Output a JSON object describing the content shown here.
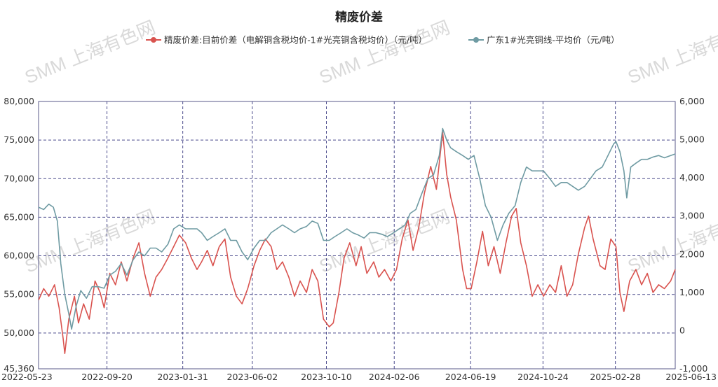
{
  "chart_data": {
    "type": "line",
    "title": "精废价差",
    "watermark": "SMM 上海有色网",
    "grid": true,
    "legend_position": "top",
    "x": [
      "2022-05-23",
      "2022-09-20",
      "2023-01-31",
      "2023-06-02",
      "2023-10-10",
      "2024-02-06",
      "2024-06-19",
      "2024-10-24",
      "2025-02-28",
      "2025-06-13"
    ],
    "xlim": [
      "2022-05-23",
      "2025-06-13"
    ],
    "y_left": {
      "ticks": [
        "80,000",
        "75,000",
        "70,000",
        "65,000",
        "60,000",
        "55,000",
        "50,000",
        "45,360"
      ],
      "range": [
        45360,
        80000
      ]
    },
    "y_right": {
      "ticks": [
        "6,000",
        "5,000",
        "4,000",
        "3,000",
        "2,000",
        "1,000",
        "0",
        "-1,000"
      ],
      "range": [
        -1000,
        6000
      ]
    },
    "series": [
      {
        "name": "精废价差:目前价差（电解铜含税均价-1#光亮铜含税均价）（元/吨）",
        "axis": "right",
        "color": "#d9534f",
        "points": [
          [
            "2022-05-23",
            800
          ],
          [
            "2022-06-01",
            1100
          ],
          [
            "2022-06-10",
            900
          ],
          [
            "2022-06-20",
            1200
          ],
          [
            "2022-06-28",
            600
          ],
          [
            "2022-07-05",
            -200
          ],
          [
            "2022-07-08",
            -600
          ],
          [
            "2022-07-15",
            300
          ],
          [
            "2022-07-25",
            900
          ],
          [
            "2022-08-01",
            200
          ],
          [
            "2022-08-10",
            700
          ],
          [
            "2022-08-20",
            300
          ],
          [
            "2022-08-30",
            1300
          ],
          [
            "2022-09-08",
            1000
          ],
          [
            "2022-09-15",
            600
          ],
          [
            "2022-09-25",
            1500
          ],
          [
            "2022-10-05",
            1200
          ],
          [
            "2022-10-15",
            1800
          ],
          [
            "2022-10-25",
            1300
          ],
          [
            "2022-11-05",
            1900
          ],
          [
            "2022-11-15",
            2300
          ],
          [
            "2022-11-25",
            1500
          ],
          [
            "2022-12-05",
            900
          ],
          [
            "2022-12-15",
            1400
          ],
          [
            "2022-12-25",
            1600
          ],
          [
            "2023-01-05",
            1900
          ],
          [
            "2023-01-15",
            2200
          ],
          [
            "2023-01-25",
            2500
          ],
          [
            "2023-02-05",
            2300
          ],
          [
            "2023-02-15",
            1900
          ],
          [
            "2023-02-25",
            1600
          ],
          [
            "2023-03-05",
            1800
          ],
          [
            "2023-03-15",
            2100
          ],
          [
            "2023-03-25",
            1700
          ],
          [
            "2023-04-05",
            2200
          ],
          [
            "2023-04-15",
            2400
          ],
          [
            "2023-04-25",
            1400
          ],
          [
            "2023-05-05",
            900
          ],
          [
            "2023-05-15",
            700
          ],
          [
            "2023-05-25",
            1100
          ],
          [
            "2023-06-05",
            1700
          ],
          [
            "2023-06-15",
            2100
          ],
          [
            "2023-06-25",
            2400
          ],
          [
            "2023-07-05",
            2200
          ],
          [
            "2023-07-15",
            1600
          ],
          [
            "2023-07-25",
            1800
          ],
          [
            "2023-08-05",
            1400
          ],
          [
            "2023-08-15",
            900
          ],
          [
            "2023-08-25",
            1300
          ],
          [
            "2023-09-05",
            1000
          ],
          [
            "2023-09-15",
            1600
          ],
          [
            "2023-09-25",
            1300
          ],
          [
            "2023-10-05",
            300
          ],
          [
            "2023-10-15",
            100
          ],
          [
            "2023-10-22",
            200
          ],
          [
            "2023-11-01",
            1000
          ],
          [
            "2023-11-10",
            1900
          ],
          [
            "2023-11-20",
            2300
          ],
          [
            "2023-12-01",
            1700
          ],
          [
            "2023-12-10",
            2200
          ],
          [
            "2023-12-20",
            1500
          ],
          [
            "2024-01-01",
            1800
          ],
          [
            "2024-01-10",
            1400
          ],
          [
            "2024-01-20",
            1600
          ],
          [
            "2024-01-31",
            1300
          ],
          [
            "2024-02-10",
            1600
          ],
          [
            "2024-02-20",
            2400
          ],
          [
            "2024-03-01",
            2900
          ],
          [
            "2024-03-10",
            2100
          ],
          [
            "2024-03-20",
            2700
          ],
          [
            "2024-03-30",
            3600
          ],
          [
            "2024-04-10",
            4300
          ],
          [
            "2024-04-20",
            3700
          ],
          [
            "2024-05-01",
            5200
          ],
          [
            "2024-05-08",
            4100
          ],
          [
            "2024-05-15",
            3500
          ],
          [
            "2024-05-25",
            2900
          ],
          [
            "2024-06-05",
            1600
          ],
          [
            "2024-06-12",
            1100
          ],
          [
            "2024-06-20",
            1100
          ],
          [
            "2024-06-30",
            1800
          ],
          [
            "2024-07-10",
            2600
          ],
          [
            "2024-07-20",
            1700
          ],
          [
            "2024-07-30",
            2200
          ],
          [
            "2024-08-10",
            1500
          ],
          [
            "2024-08-20",
            2300
          ],
          [
            "2024-08-30",
            3000
          ],
          [
            "2024-09-07",
            3200
          ],
          [
            "2024-09-15",
            2300
          ],
          [
            "2024-09-25",
            1700
          ],
          [
            "2024-10-05",
            900
          ],
          [
            "2024-10-15",
            1200
          ],
          [
            "2024-10-25",
            900
          ],
          [
            "2024-11-05",
            1200
          ],
          [
            "2024-11-15",
            1000
          ],
          [
            "2024-11-25",
            1700
          ],
          [
            "2024-12-05",
            900
          ],
          [
            "2024-12-15",
            1200
          ],
          [
            "2024-12-25",
            2000
          ],
          [
            "2025-01-05",
            2700
          ],
          [
            "2025-01-12",
            3000
          ],
          [
            "2025-01-20",
            2400
          ],
          [
            "2025-02-01",
            1700
          ],
          [
            "2025-02-10",
            1600
          ],
          [
            "2025-02-20",
            2400
          ],
          [
            "2025-03-01",
            2200
          ],
          [
            "2025-03-08",
            1000
          ],
          [
            "2025-03-15",
            500
          ],
          [
            "2025-03-25",
            1300
          ],
          [
            "2025-04-05",
            1600
          ],
          [
            "2025-04-15",
            1200
          ],
          [
            "2025-04-25",
            1500
          ],
          [
            "2025-05-05",
            1000
          ],
          [
            "2025-05-15",
            1200
          ],
          [
            "2025-05-25",
            1100
          ],
          [
            "2025-06-05",
            1300
          ],
          [
            "2025-06-13",
            1600
          ]
        ]
      },
      {
        "name": "广东1#光亮铜线-平均价（元/吨）",
        "axis": "left",
        "color": "#6f9ba3",
        "points": [
          [
            "2022-05-23",
            66300
          ],
          [
            "2022-06-01",
            66000
          ],
          [
            "2022-06-10",
            66700
          ],
          [
            "2022-06-18",
            66300
          ],
          [
            "2022-06-25",
            64500
          ],
          [
            "2022-07-01",
            59000
          ],
          [
            "2022-07-08",
            55000
          ],
          [
            "2022-07-15",
            52500
          ],
          [
            "2022-07-20",
            50500
          ],
          [
            "2022-07-28",
            53500
          ],
          [
            "2022-08-05",
            55500
          ],
          [
            "2022-08-15",
            54500
          ],
          [
            "2022-08-25",
            56000
          ],
          [
            "2022-09-05",
            56000
          ],
          [
            "2022-09-15",
            55800
          ],
          [
            "2022-09-25",
            57500
          ],
          [
            "2022-10-05",
            58000
          ],
          [
            "2022-10-15",
            59000
          ],
          [
            "2022-10-25",
            57500
          ],
          [
            "2022-11-05",
            59500
          ],
          [
            "2022-11-15",
            60500
          ],
          [
            "2022-11-25",
            60000
          ],
          [
            "2022-12-05",
            61000
          ],
          [
            "2022-12-15",
            61000
          ],
          [
            "2022-12-25",
            60500
          ],
          [
            "2023-01-05",
            61500
          ],
          [
            "2023-01-15",
            63500
          ],
          [
            "2023-01-25",
            64000
          ],
          [
            "2023-02-05",
            63500
          ],
          [
            "2023-02-15",
            63500
          ],
          [
            "2023-02-25",
            63500
          ],
          [
            "2023-03-05",
            63000
          ],
          [
            "2023-03-15",
            62000
          ],
          [
            "2023-03-25",
            62500
          ],
          [
            "2023-04-05",
            63000
          ],
          [
            "2023-04-15",
            63500
          ],
          [
            "2023-04-25",
            62000
          ],
          [
            "2023-05-05",
            62000
          ],
          [
            "2023-05-15",
            60500
          ],
          [
            "2023-05-25",
            59500
          ],
          [
            "2023-06-05",
            61000
          ],
          [
            "2023-06-15",
            62000
          ],
          [
            "2023-06-25",
            62000
          ],
          [
            "2023-07-05",
            63000
          ],
          [
            "2023-07-15",
            63500
          ],
          [
            "2023-07-25",
            64000
          ],
          [
            "2023-08-05",
            63500
          ],
          [
            "2023-08-15",
            63000
          ],
          [
            "2023-08-25",
            63500
          ],
          [
            "2023-09-05",
            63800
          ],
          [
            "2023-09-15",
            64500
          ],
          [
            "2023-09-25",
            64200
          ],
          [
            "2023-10-05",
            62000
          ],
          [
            "2023-10-15",
            62000
          ],
          [
            "2023-10-25",
            62500
          ],
          [
            "2023-11-05",
            63000
          ],
          [
            "2023-11-15",
            63500
          ],
          [
            "2023-11-25",
            63000
          ],
          [
            "2023-12-05",
            62700
          ],
          [
            "2023-12-15",
            62300
          ],
          [
            "2023-12-25",
            63000
          ],
          [
            "2024-01-05",
            63000
          ],
          [
            "2024-01-15",
            62800
          ],
          [
            "2024-01-25",
            62500
          ],
          [
            "2024-02-05",
            63000
          ],
          [
            "2024-02-15",
            63500
          ],
          [
            "2024-02-25",
            64000
          ],
          [
            "2024-03-05",
            65500
          ],
          [
            "2024-03-15",
            66000
          ],
          [
            "2024-03-25",
            68000
          ],
          [
            "2024-04-05",
            70000
          ],
          [
            "2024-04-15",
            70500
          ],
          [
            "2024-04-25",
            73000
          ],
          [
            "2024-05-01",
            76500
          ],
          [
            "2024-05-08",
            75000
          ],
          [
            "2024-05-15",
            74000
          ],
          [
            "2024-05-25",
            73500
          ],
          [
            "2024-06-05",
            73000
          ],
          [
            "2024-06-15",
            72500
          ],
          [
            "2024-06-25",
            73000
          ],
          [
            "2024-07-05",
            70000
          ],
          [
            "2024-07-15",
            66500
          ],
          [
            "2024-07-25",
            65000
          ],
          [
            "2024-08-05",
            62000
          ],
          [
            "2024-08-15",
            64000
          ],
          [
            "2024-08-25",
            65500
          ],
          [
            "2024-09-05",
            66500
          ],
          [
            "2024-09-15",
            69500
          ],
          [
            "2024-09-25",
            71500
          ],
          [
            "2024-10-05",
            71000
          ],
          [
            "2024-10-15",
            71000
          ],
          [
            "2024-10-25",
            71000
          ],
          [
            "2024-11-05",
            70000
          ],
          [
            "2024-11-15",
            69000
          ],
          [
            "2024-11-25",
            69500
          ],
          [
            "2024-12-05",
            69500
          ],
          [
            "2024-12-15",
            69000
          ],
          [
            "2024-12-25",
            68500
          ],
          [
            "2025-01-05",
            69000
          ],
          [
            "2025-01-15",
            70000
          ],
          [
            "2025-01-25",
            71000
          ],
          [
            "2025-02-05",
            71500
          ],
          [
            "2025-02-15",
            73000
          ],
          [
            "2025-02-25",
            74500
          ],
          [
            "2025-03-01",
            74800
          ],
          [
            "2025-03-08",
            73500
          ],
          [
            "2025-03-15",
            71000
          ],
          [
            "2025-03-20",
            67500
          ],
          [
            "2025-03-27",
            71500
          ],
          [
            "2025-04-05",
            72000
          ],
          [
            "2025-04-15",
            72500
          ],
          [
            "2025-04-25",
            72500
          ],
          [
            "2025-05-05",
            72800
          ],
          [
            "2025-05-15",
            73000
          ],
          [
            "2025-05-25",
            72700
          ],
          [
            "2025-06-05",
            73000
          ],
          [
            "2025-06-13",
            73200
          ]
        ]
      }
    ]
  }
}
